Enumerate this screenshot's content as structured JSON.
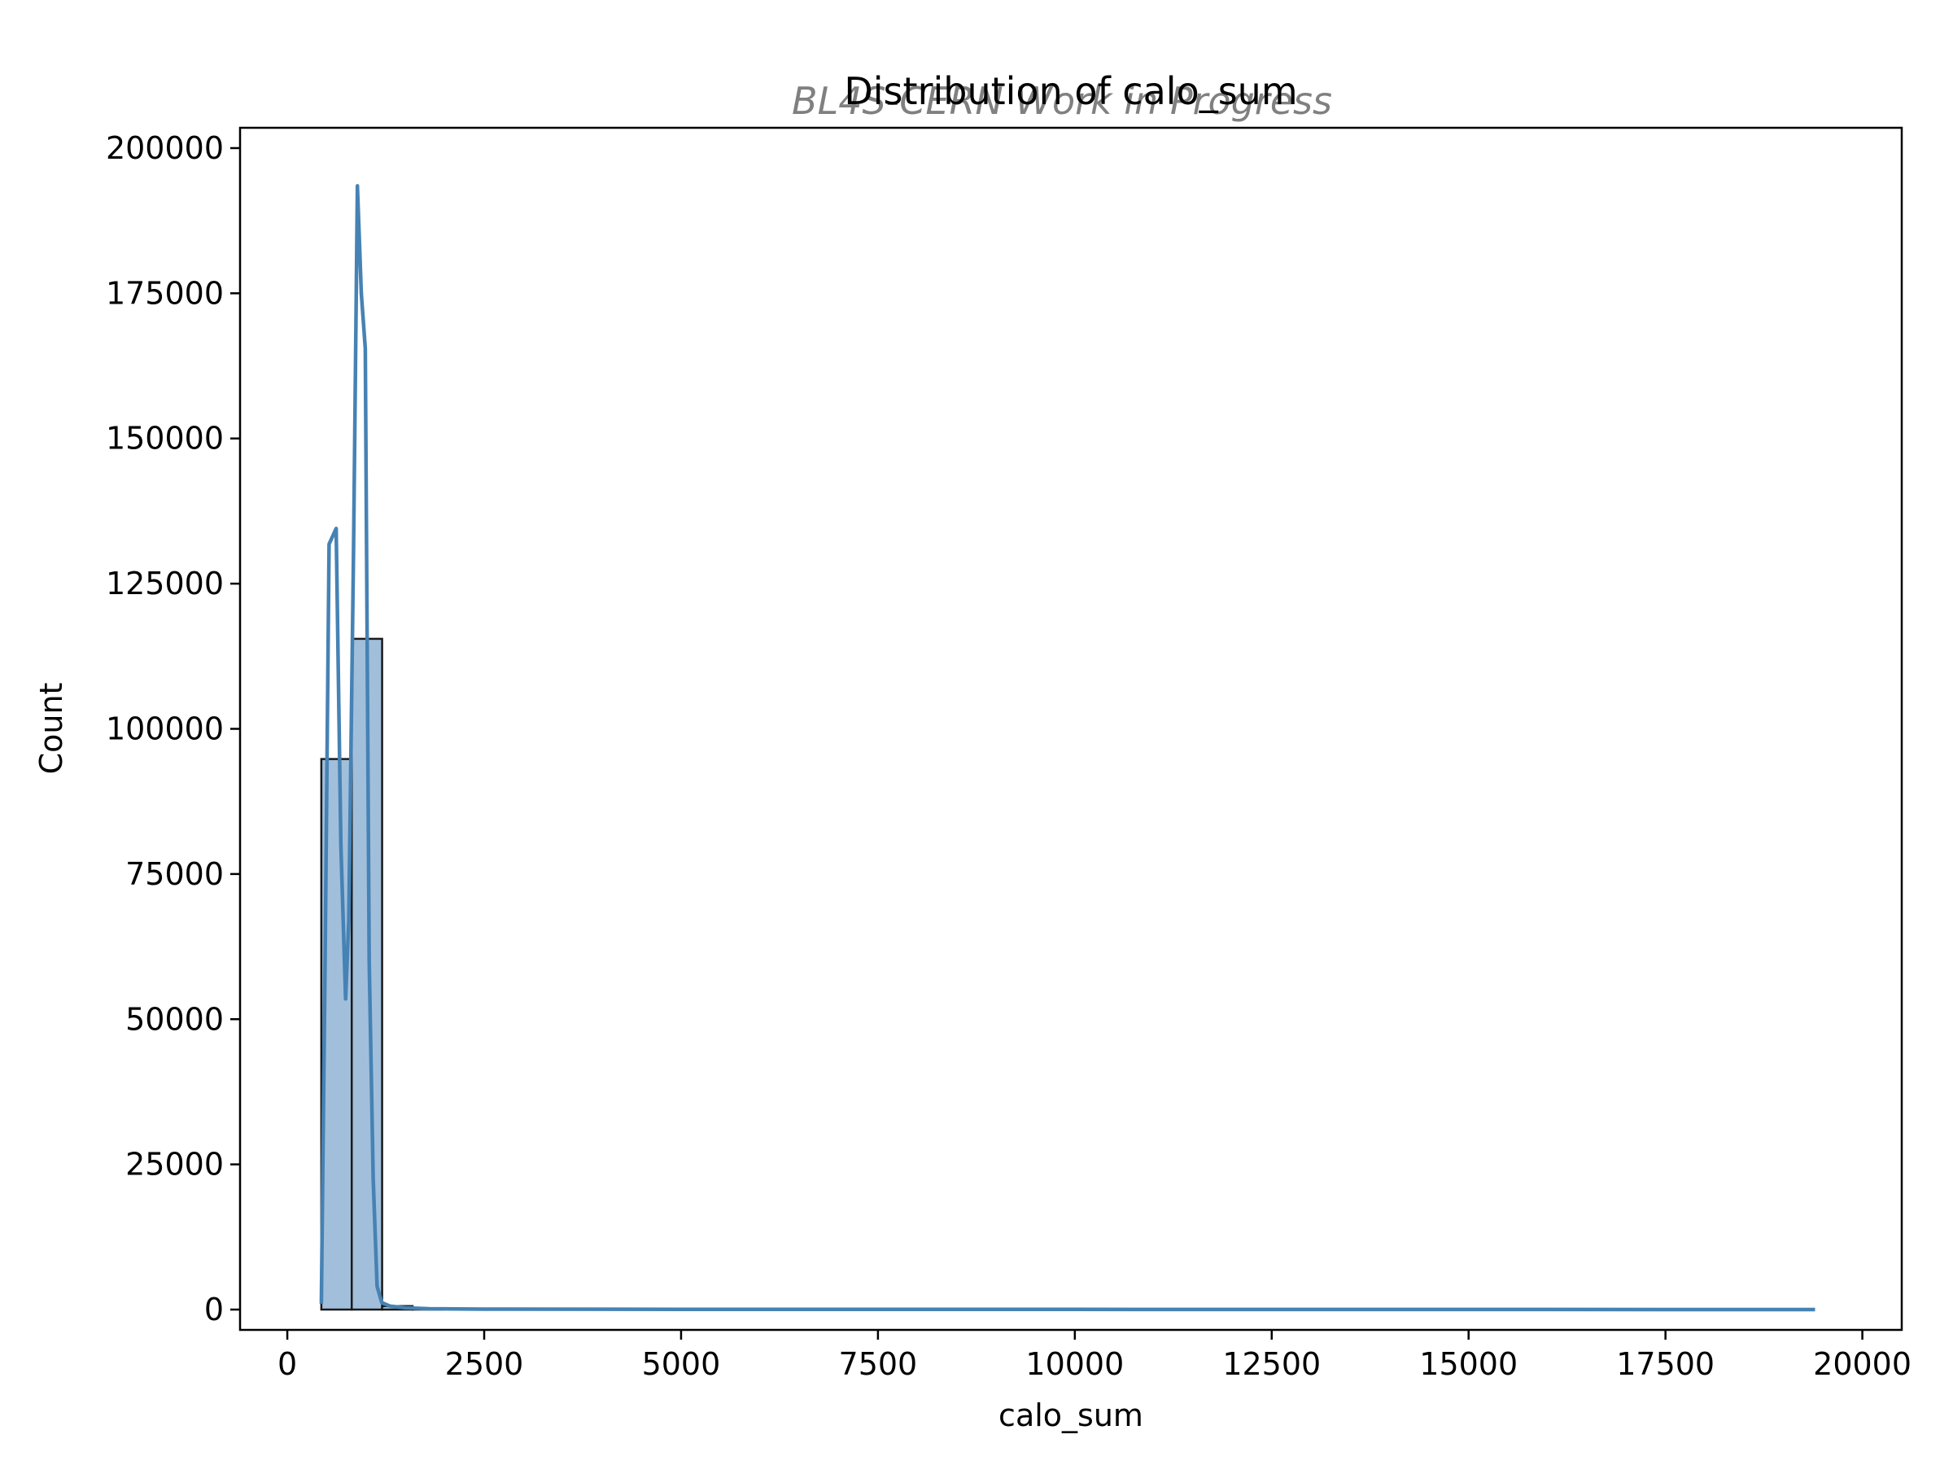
{
  "chart_data": {
    "type": "bar",
    "title": "Distribution of calo_sum",
    "watermark": "BL4S-CERN Work in Progress",
    "xlabel": "calo_sum",
    "ylabel": "Count",
    "xlim": [
      -600,
      20500
    ],
    "ylim": [
      -3500,
      203500
    ],
    "x_ticks": [
      0,
      2500,
      5000,
      7500,
      10000,
      12500,
      15000,
      17500,
      20000
    ],
    "y_ticks": [
      0,
      25000,
      50000,
      75000,
      100000,
      125000,
      150000,
      175000,
      200000
    ],
    "grid": false,
    "histogram": {
      "bin_width": 386,
      "bins": [
        {
          "x0": 432,
          "x1": 818,
          "count": 94800
        },
        {
          "x0": 818,
          "x1": 1204,
          "count": 115500
        },
        {
          "x0": 1204,
          "x1": 1590,
          "count": 600
        },
        {
          "x0": 1590,
          "x1": 1976,
          "count": 100
        }
      ]
    },
    "kde": {
      "x": [
        432,
        480,
        530,
        620,
        680,
        740,
        780,
        840,
        890,
        940,
        990,
        1040,
        1090,
        1140,
        1200,
        1300,
        1500,
        1800,
        2500,
        5000,
        10000,
        15000,
        19400
      ],
      "y": [
        1000,
        60000,
        131800,
        134500,
        80000,
        53500,
        67000,
        130000,
        193500,
        175000,
        165500,
        60000,
        22500,
        4000,
        1200,
        600,
        300,
        150,
        80,
        50,
        30,
        20,
        10
      ]
    },
    "colors": {
      "bar_fill": "#a1bfdb",
      "bar_edge": "#1a1a1a",
      "kde_line": "#4682b4",
      "watermark": "#808080",
      "axes": "#000000"
    }
  }
}
